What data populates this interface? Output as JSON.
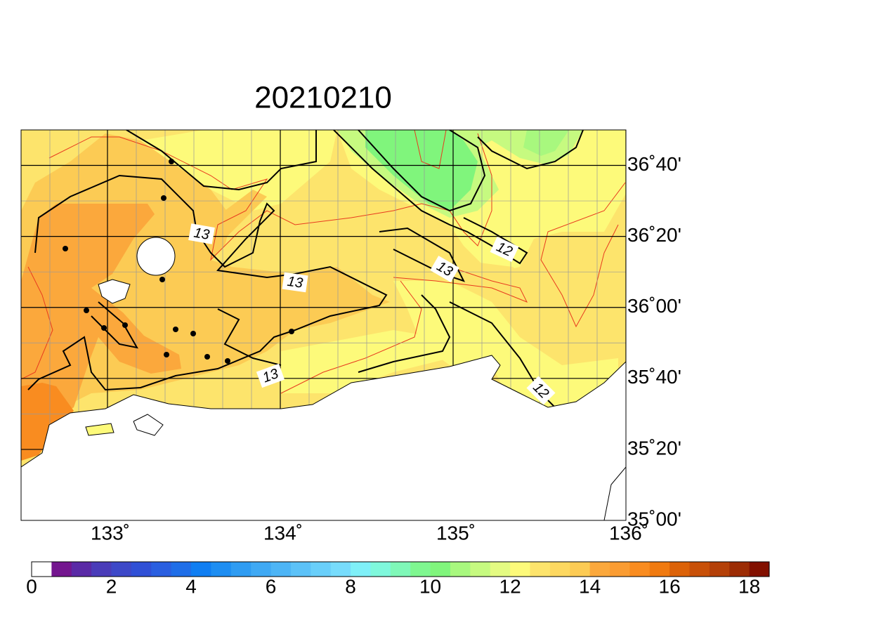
{
  "title": "20210210",
  "map": {
    "lon_range": [
      132.5,
      136
    ],
    "lat_range": [
      35,
      36.8333
    ],
    "lon_ticks": [
      {
        "value": 133,
        "label": "133˚"
      },
      {
        "value": 134,
        "label": "134˚"
      },
      {
        "value": 135,
        "label": "135˚"
      },
      {
        "value": 136,
        "label": "136˚"
      }
    ],
    "lat_ticks": [
      {
        "value": 35,
        "label": "35˚00'"
      },
      {
        "value": 35.3333,
        "label": "35˚20'"
      },
      {
        "value": 35.6667,
        "label": "35˚40'"
      },
      {
        "value": 36,
        "label": "36˚00'"
      },
      {
        "value": 36.3333,
        "label": "36˚20'"
      },
      {
        "value": 36.6667,
        "label": "36˚40'"
      }
    ],
    "contour_labels": [
      13,
      13,
      13,
      12,
      13,
      12
    ]
  },
  "colorbar": {
    "lim": [
      0,
      18.5
    ],
    "ticks": [
      0,
      2,
      4,
      6,
      8,
      10,
      12,
      14,
      16,
      18
    ],
    "colors": [
      "#ffffff",
      "#74168f",
      "#5a2aa6",
      "#4a3cb9",
      "#3d48c8",
      "#3050d6",
      "#2a5fe0",
      "#1f6ee8",
      "#107ef2",
      "#1e8ef2",
      "#2f9cf2",
      "#3fa9f4",
      "#4db5f6",
      "#5cc2f8",
      "#69cffa",
      "#77dcfc",
      "#7ff0f8",
      "#7ff8dc",
      "#7ff8b8",
      "#7ff790",
      "#80f57c",
      "#a8f87e",
      "#c6fa80",
      "#e4fb82",
      "#fdfa7a",
      "#fde46c",
      "#fdd860",
      "#fccb54",
      "#fba83c",
      "#fa9c32",
      "#f98c20",
      "#f07a10",
      "#dc6208",
      "#c85008",
      "#b44008",
      "#9c2c04",
      "#821000"
    ]
  }
}
